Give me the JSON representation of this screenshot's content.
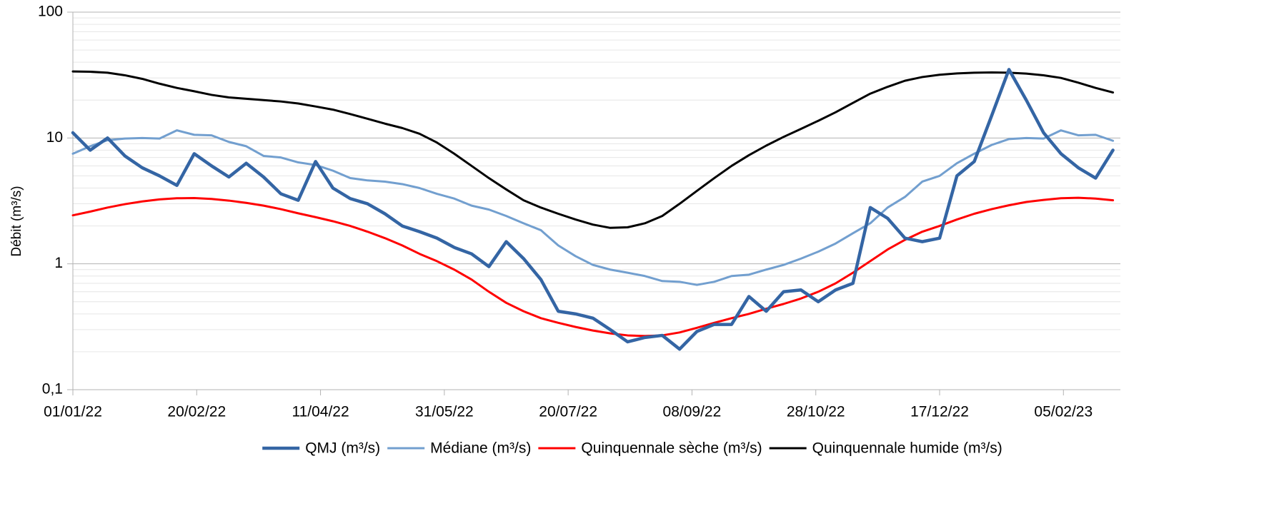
{
  "chart_data": {
    "type": "line",
    "y_label": "Débit (m³/s)",
    "log_scale": true,
    "grid": true,
    "minor_grid": true,
    "legend": "bottom",
    "xlim": [
      "01/01/22",
      "28/02/23"
    ],
    "xticks": [
      "01/01/22",
      "20/02/22",
      "11/04/22",
      "31/05/22",
      "20/07/22",
      "08/09/22",
      "28/10/22",
      "17/12/22",
      "05/02/23"
    ],
    "ylim": [
      0.1,
      100
    ],
    "yticks": [
      {
        "value": 0.1,
        "label": "0,1"
      },
      1,
      10,
      100
    ],
    "x": [
      "01/01/22",
      "08/01/22",
      "15/01/22",
      "22/01/22",
      "29/01/22",
      "05/02/22",
      "12/02/22",
      "19/02/22",
      "26/02/22",
      "05/03/22",
      "12/03/22",
      "19/03/22",
      "26/03/22",
      "02/04/22",
      "09/04/22",
      "16/04/22",
      "23/04/22",
      "30/04/22",
      "07/05/22",
      "14/05/22",
      "21/05/22",
      "28/05/22",
      "04/06/22",
      "11/06/22",
      "18/06/22",
      "25/06/22",
      "02/07/22",
      "09/07/22",
      "16/07/22",
      "23/07/22",
      "30/07/22",
      "06/08/22",
      "13/08/22",
      "20/08/22",
      "27/08/22",
      "03/09/22",
      "10/09/22",
      "17/09/22",
      "24/09/22",
      "01/10/22",
      "08/10/22",
      "15/10/22",
      "22/10/22",
      "29/10/22",
      "05/11/22",
      "12/11/22",
      "19/11/22",
      "26/11/22",
      "03/12/22",
      "10/12/22",
      "17/12/22",
      "24/12/22",
      "31/12/22",
      "07/01/23",
      "14/01/23",
      "21/01/23",
      "28/01/23",
      "04/02/23",
      "11/02/23",
      "18/02/23",
      "25/02/23"
    ],
    "series": [
      {
        "name": "QMJ (m³/s)",
        "color": "#3465a4",
        "width": 4.5,
        "values": [
          11,
          8,
          10,
          7.2,
          5.8,
          5,
          4.2,
          7.5,
          6,
          4.9,
          6.3,
          4.9,
          3.6,
          3.2,
          6.5,
          4,
          3.3,
          3.0,
          2.5,
          2.0,
          1.8,
          1.6,
          1.35,
          1.2,
          0.95,
          1.5,
          1.1,
          0.75,
          0.42,
          0.4,
          0.37,
          0.3,
          0.24,
          0.26,
          0.27,
          0.21,
          0.29,
          0.33,
          0.33,
          0.55,
          0.42,
          0.6,
          0.62,
          0.5,
          0.62,
          0.7,
          2.8,
          2.3,
          1.6,
          1.5,
          1.6,
          5,
          6.5,
          15,
          35,
          20,
          11,
          7.5,
          5.8,
          4.8,
          8
        ]
      },
      {
        "name": "Médiane (m³/s)",
        "color": "#729fcf",
        "width": 3,
        "values": [
          7.5,
          8.6,
          9.6,
          9.9,
          10,
          9.9,
          11.5,
          10.6,
          10.5,
          9.3,
          8.6,
          7.2,
          7.0,
          6.4,
          6.1,
          5.5,
          4.8,
          4.6,
          4.5,
          4.3,
          4.0,
          3.6,
          3.3,
          2.9,
          2.7,
          2.4,
          2.1,
          1.85,
          1.4,
          1.15,
          0.98,
          0.9,
          0.85,
          0.8,
          0.73,
          0.72,
          0.68,
          0.72,
          0.8,
          0.82,
          0.9,
          0.98,
          1.1,
          1.25,
          1.45,
          1.75,
          2.1,
          2.8,
          3.4,
          4.5,
          5.0,
          6.3,
          7.5,
          8.8,
          9.8,
          10,
          9.9,
          11.5,
          10.5,
          10.6,
          9.5
        ]
      },
      {
        "name": "Quinquennale sèche (m³/s)",
        "color": "#ff0000",
        "width": 3,
        "values": [
          2.43,
          2.6,
          2.8,
          2.98,
          3.13,
          3.25,
          3.32,
          3.33,
          3.28,
          3.18,
          3.05,
          2.9,
          2.72,
          2.52,
          2.35,
          2.18,
          2.0,
          1.8,
          1.6,
          1.4,
          1.2,
          1.05,
          0.9,
          0.75,
          0.6,
          0.49,
          0.42,
          0.37,
          0.34,
          0.315,
          0.295,
          0.28,
          0.27,
          0.267,
          0.27,
          0.285,
          0.31,
          0.34,
          0.37,
          0.4,
          0.44,
          0.48,
          0.53,
          0.6,
          0.7,
          0.85,
          1.05,
          1.3,
          1.55,
          1.8,
          2.0,
          2.25,
          2.5,
          2.72,
          2.92,
          3.1,
          3.22,
          3.32,
          3.35,
          3.3,
          3.2
        ]
      },
      {
        "name": "Quinquennale humide (m³/s)",
        "color": "#000000",
        "width": 3,
        "values": [
          33.8,
          33.6,
          33,
          31.5,
          29.5,
          27,
          25,
          23.5,
          22,
          21,
          20.5,
          20,
          19.5,
          18.8,
          17.8,
          16.8,
          15.5,
          14.2,
          13,
          12,
          10.8,
          9.2,
          7.5,
          6,
          4.8,
          3.9,
          3.2,
          2.8,
          2.5,
          2.25,
          2.05,
          1.93,
          1.95,
          2.1,
          2.4,
          3.0,
          3.8,
          4.8,
          6.0,
          7.3,
          8.7,
          10.2,
          11.8,
          13.7,
          16,
          19,
          22.5,
          25.5,
          28.5,
          30.5,
          31.8,
          32.6,
          33,
          33.2,
          33,
          32.5,
          31.5,
          30,
          27.5,
          25,
          23
        ]
      }
    ]
  }
}
